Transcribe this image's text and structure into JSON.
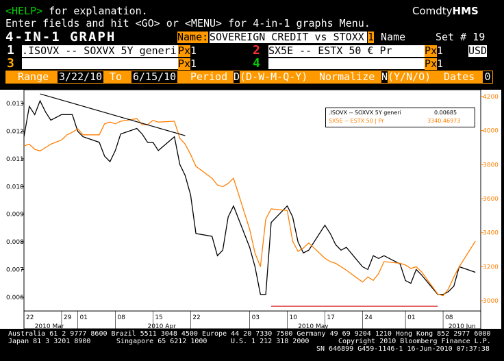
{
  "header": {
    "help_key": "<HELP>",
    "help_text": " for explanation.",
    "line2": "Enter fields and hit <GO> or <MENU> for 4-in-1 graphs Menu.",
    "brand_prefix": "Comdty",
    "brand_suffix": "HMS"
  },
  "title_row": {
    "title": "4-IN-1 GRAPH",
    "name_label": "Name:",
    "name_value": "SOVEREIGN CREDIT vs STOXX",
    "name_num": "1",
    "name_word": " Name",
    "set_label": "Set # 19"
  },
  "securities": [
    {
      "num": "1",
      "ticker": ".ISOVX -- SOXVX 5Y generi",
      "px": "Px",
      "px_val": "1"
    },
    {
      "num": "2",
      "ticker": "SX5E -- ESTX 50 € Pr",
      "px": "Px",
      "px_val": "1",
      "ccy": "USD"
    },
    {
      "num": "3",
      "ticker": "",
      "px": "Px",
      "px_val": "1"
    },
    {
      "num": "4",
      "ticker": "",
      "px": "Px",
      "px_val": "1"
    }
  ],
  "range_row": {
    "range_label": "Range",
    "from": "3/22/10",
    "to_label": "To",
    "to": "6/15/10",
    "period_label": "Period",
    "period_value": "D",
    "period_opts": "(D-W-M-Q-Y)",
    "normalize_label": "Normalize",
    "normalize_value": "N",
    "normalize_opts": "(Y/N/O)",
    "dates_label": "Dates",
    "dates_value": "0"
  },
  "legend": {
    "s1_label": ".ISOVX -- SOXVX 5Y generi",
    "s1_value": "0.00685",
    "s2_label": "SX5E -- ESTX 50 | Pr",
    "s2_value": "3340.46973"
  },
  "footer": {
    "line1": "Australia 61 2 9777 8600 Brazil 5511 3048 4500 Europe 44 20 7330 7500 Germany 49 69 9204 1210 Hong Kong 852 2977 6000",
    "line2a": "Japan 81 3 3201 8900",
    "line2b": "Singapore 65 6212 1000",
    "line2c": "U.S. 1 212 318 2000",
    "line2d": "Copyright 2010 Bloomberg Finance L.P.",
    "line3": "SN 646899 G459-1146-1 16-Jun-2010 07:37:38"
  },
  "colors": {
    "series1": "#000000",
    "series2": "#ff7f00",
    "trend_down": "#000000",
    "trend_support": "#d00000",
    "chart_bg": "#ffffff",
    "label_orange": "#ff9900"
  },
  "chart_data": {
    "type": "line",
    "x_tick_labels": [
      "22",
      "29",
      "01",
      "08",
      "15",
      "22",
      "03",
      "10",
      "17",
      "24",
      "01",
      "08"
    ],
    "x_tick_days": [
      0,
      7,
      10,
      17,
      24,
      31,
      42,
      49,
      56,
      63,
      71,
      78
    ],
    "month_labels": [
      {
        "label": "2010 Mar",
        "day": 2
      },
      {
        "label": "2010 Apr",
        "day": 23
      },
      {
        "label": "2010 May",
        "day": 51
      },
      {
        "label": "2010 Jun",
        "day": 79
      }
    ],
    "y_left_ticks": [
      "0.006",
      "0.007",
      "0.008",
      "0.009",
      "0.010",
      "0.011",
      "0.012",
      "0.013"
    ],
    "y_left_range": [
      0.0055,
      0.0135
    ],
    "y_right_ticks": [
      "3000",
      "3200",
      "3400",
      "3600",
      "3800",
      "4000",
      "4200"
    ],
    "y_right_range": [
      2940,
      4240
    ],
    "x_range": [
      0,
      85
    ],
    "series": [
      {
        "name": ".ISOVX -- SOXVX 5Y generi",
        "axis": "left",
        "x": [
          0,
          1,
          2,
          3,
          4,
          5,
          7,
          8,
          9,
          10,
          11,
          14,
          15,
          16,
          17,
          18,
          21,
          22,
          23,
          24,
          25,
          28,
          29,
          30,
          31,
          32,
          35,
          36,
          37,
          38,
          39,
          42,
          43,
          44,
          45,
          46,
          49,
          50,
          51,
          52,
          53,
          56,
          57,
          58,
          59,
          60,
          63,
          64,
          65,
          66,
          67,
          70,
          71,
          72,
          73,
          74,
          77,
          78,
          79,
          80,
          81,
          84
        ],
        "y": [
          0.0118,
          0.0129,
          0.0126,
          0.0131,
          0.0127,
          0.0124,
          0.0126,
          0.0126,
          0.0126,
          0.012,
          0.0118,
          0.0116,
          0.0111,
          0.0109,
          0.0113,
          0.0119,
          0.0121,
          0.0119,
          0.0116,
          0.0116,
          0.0113,
          0.0118,
          0.0108,
          0.0104,
          0.0097,
          0.0083,
          0.0082,
          0.0075,
          0.0077,
          0.0089,
          0.0093,
          0.0078,
          0.0071,
          0.0061,
          0.0061,
          0.0087,
          0.0093,
          0.0089,
          0.008,
          0.0076,
          0.0077,
          0.0086,
          0.0083,
          0.0079,
          0.0077,
          0.0078,
          0.0071,
          0.007,
          0.0075,
          0.0074,
          0.0075,
          0.0072,
          0.0066,
          0.0065,
          0.007,
          0.0068,
          0.0061,
          0.0061,
          0.0062,
          0.0064,
          0.0071,
          0.0069
        ]
      },
      {
        "name": "SX5E -- ESTX 50 € Pr",
        "axis": "right",
        "x": [
          0,
          1,
          2,
          3,
          4,
          5,
          7,
          8,
          9,
          10,
          11,
          14,
          15,
          16,
          17,
          18,
          21,
          22,
          23,
          24,
          25,
          28,
          29,
          30,
          31,
          32,
          35,
          36,
          37,
          38,
          39,
          42,
          43,
          44,
          45,
          46,
          49,
          50,
          51,
          52,
          53,
          56,
          57,
          58,
          59,
          60,
          63,
          64,
          65,
          66,
          67,
          70,
          71,
          72,
          73,
          74,
          77,
          78,
          79,
          80,
          81,
          84
        ],
        "y": [
          3910,
          3920,
          3890,
          3880,
          3900,
          3920,
          3945,
          3975,
          3990,
          4010,
          3975,
          3975,
          4040,
          4050,
          4040,
          4055,
          4070,
          4035,
          4035,
          4060,
          4050,
          4055,
          3955,
          3920,
          3860,
          3790,
          3720,
          3680,
          3670,
          3690,
          3720,
          3420,
          3280,
          3200,
          3480,
          3540,
          3530,
          3350,
          3290,
          3310,
          3340,
          3250,
          3230,
          3220,
          3200,
          3180,
          3110,
          3140,
          3120,
          3160,
          3230,
          3220,
          3210,
          3190,
          3200,
          3170,
          3040,
          3030,
          3070,
          3140,
          3200,
          3350
        ]
      }
    ],
    "annotations": [
      {
        "type": "trendline",
        "axis": "left",
        "x": [
          3,
          30
        ],
        "y": [
          0.01335,
          0.01184
        ]
      },
      {
        "type": "support",
        "axis": "right",
        "x": [
          46,
          77
        ],
        "y": [
          2968,
          2968
        ]
      }
    ]
  }
}
